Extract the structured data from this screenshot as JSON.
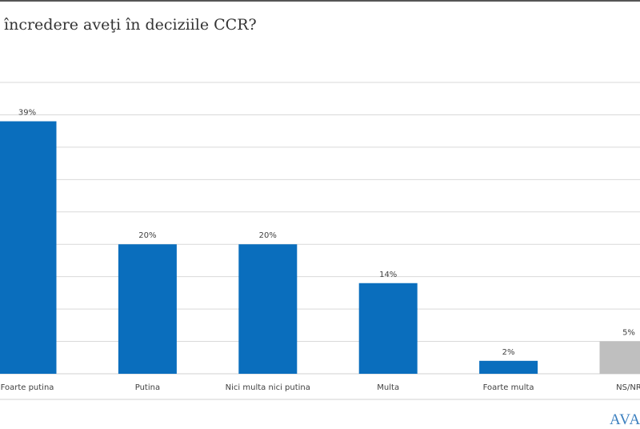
{
  "chart_data": {
    "type": "bar",
    "title": "încredere aveţi în deciziile CCR?",
    "categories": [
      "Foarte putina",
      "Putina",
      "Nici multa nici putina",
      "Multa",
      "Foarte multa",
      "NS/NR"
    ],
    "values": [
      39,
      20,
      20,
      14,
      2,
      5
    ],
    "data_labels": [
      "39%",
      "20%",
      "20%",
      "14%",
      "2%",
      "5%"
    ],
    "bar_colors": [
      "#0a6ebd",
      "#0a6ebd",
      "#0a6ebd",
      "#0a6ebd",
      "#0a6ebd",
      "#bfbfbf"
    ],
    "ylim": [
      0,
      45
    ],
    "grid_step": 5,
    "grid": true,
    "xlabel": "",
    "ylabel": ""
  },
  "logo_text": "AVAN"
}
